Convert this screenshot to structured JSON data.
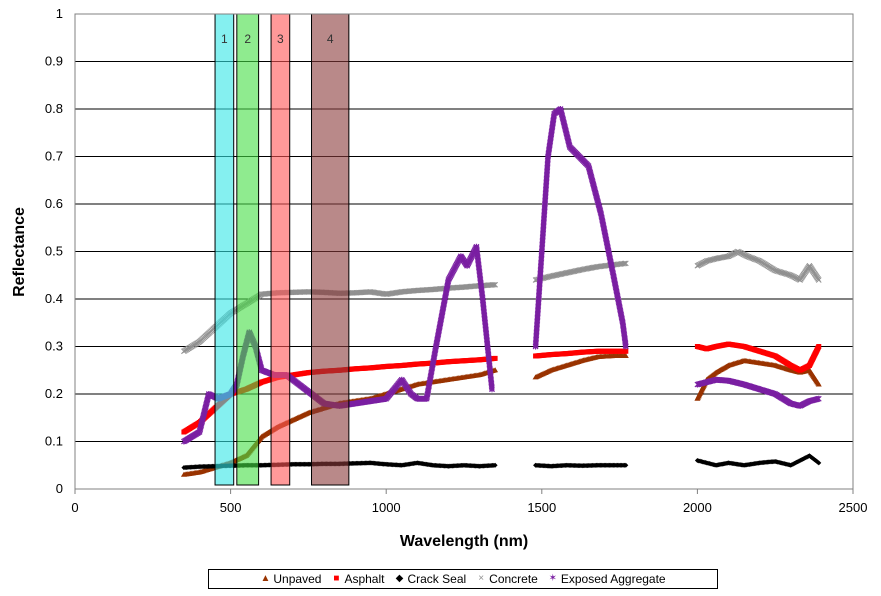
{
  "chart_data": {
    "type": "scatter",
    "title": "",
    "xlabel": "Wavelength (nm)",
    "ylabel": "Reflectance",
    "xlim": [
      0,
      2500
    ],
    "ylim": [
      0,
      1
    ],
    "x_ticks": [
      "0",
      "500",
      "1000",
      "1500",
      "2000",
      "2500"
    ],
    "y_ticks": [
      "0",
      "0.1",
      "0.2",
      "0.3",
      "0.4",
      "0.5",
      "0.6",
      "0.7",
      "0.8",
      "0.9",
      "1"
    ],
    "grid": "horizontal",
    "legend_position": "bottom",
    "bands": [
      {
        "label": "1",
        "x0": 450,
        "x1": 510,
        "color": "#33e6e6"
      },
      {
        "label": "2",
        "x0": 520,
        "x1": 590,
        "color": "#44dd44"
      },
      {
        "label": "3",
        "x0": 630,
        "x1": 690,
        "color": "#ff5555"
      },
      {
        "label": "4",
        "x0": 760,
        "x1": 880,
        "color": "#8b3a3a"
      }
    ],
    "series": [
      {
        "name": "Unpaved",
        "color": "#993300",
        "marker": "triangle",
        "segments": [
          [
            [
              350,
              0.03
            ],
            [
              400,
              0.035
            ],
            [
              450,
              0.045
            ],
            [
              500,
              0.055
            ],
            [
              550,
              0.07
            ],
            [
              600,
              0.11
            ],
            [
              650,
              0.13
            ],
            [
              700,
              0.145
            ],
            [
              750,
              0.16
            ],
            [
              800,
              0.17
            ],
            [
              850,
              0.18
            ],
            [
              900,
              0.185
            ],
            [
              950,
              0.19
            ],
            [
              1000,
              0.2
            ],
            [
              1050,
              0.21
            ],
            [
              1100,
              0.22
            ],
            [
              1150,
              0.225
            ],
            [
              1200,
              0.23
            ],
            [
              1250,
              0.235
            ],
            [
              1300,
              0.24
            ],
            [
              1350,
              0.25
            ]
          ],
          [
            [
              1480,
              0.235
            ],
            [
              1530,
              0.25
            ],
            [
              1580,
              0.26
            ],
            [
              1630,
              0.27
            ],
            [
              1680,
              0.278
            ],
            [
              1730,
              0.28
            ],
            [
              1770,
              0.28
            ]
          ],
          [
            [
              2000,
              0.19
            ],
            [
              2030,
              0.23
            ],
            [
              2060,
              0.245
            ],
            [
              2100,
              0.26
            ],
            [
              2150,
              0.27
            ],
            [
              2200,
              0.265
            ],
            [
              2250,
              0.26
            ],
            [
              2300,
              0.25
            ],
            [
              2330,
              0.245
            ],
            [
              2360,
              0.25
            ],
            [
              2390,
              0.22
            ]
          ]
        ]
      },
      {
        "name": "Asphalt",
        "color": "#ff0000",
        "marker": "square",
        "segments": [
          [
            [
              350,
              0.12
            ],
            [
              400,
              0.14
            ],
            [
              450,
              0.17
            ],
            [
              500,
              0.2
            ],
            [
              550,
              0.21
            ],
            [
              600,
              0.225
            ],
            [
              650,
              0.235
            ],
            [
              700,
              0.24
            ],
            [
              750,
              0.245
            ],
            [
              800,
              0.248
            ],
            [
              850,
              0.25
            ],
            [
              900,
              0.253
            ],
            [
              950,
              0.255
            ],
            [
              1000,
              0.258
            ],
            [
              1050,
              0.26
            ],
            [
              1100,
              0.263
            ],
            [
              1150,
              0.265
            ],
            [
              1200,
              0.268
            ],
            [
              1250,
              0.27
            ],
            [
              1300,
              0.272
            ],
            [
              1350,
              0.275
            ]
          ],
          [
            [
              1480,
              0.28
            ],
            [
              1530,
              0.283
            ],
            [
              1580,
              0.285
            ],
            [
              1630,
              0.288
            ],
            [
              1680,
              0.29
            ],
            [
              1730,
              0.29
            ],
            [
              1770,
              0.29
            ]
          ],
          [
            [
              2000,
              0.3
            ],
            [
              2030,
              0.295
            ],
            [
              2060,
              0.3
            ],
            [
              2100,
              0.305
            ],
            [
              2150,
              0.3
            ],
            [
              2200,
              0.29
            ],
            [
              2250,
              0.28
            ],
            [
              2300,
              0.26
            ],
            [
              2330,
              0.25
            ],
            [
              2360,
              0.26
            ],
            [
              2390,
              0.3
            ]
          ]
        ]
      },
      {
        "name": "Crack Seal",
        "color": "#000000",
        "marker": "diamond",
        "segments": [
          [
            [
              350,
              0.045
            ],
            [
              400,
              0.047
            ],
            [
              450,
              0.048
            ],
            [
              500,
              0.049
            ],
            [
              550,
              0.05
            ],
            [
              600,
              0.05
            ],
            [
              650,
              0.051
            ],
            [
              700,
              0.052
            ],
            [
              750,
              0.052
            ],
            [
              800,
              0.053
            ],
            [
              850,
              0.053
            ],
            [
              900,
              0.054
            ],
            [
              950,
              0.055
            ],
            [
              1000,
              0.052
            ],
            [
              1050,
              0.05
            ],
            [
              1100,
              0.055
            ],
            [
              1150,
              0.05
            ],
            [
              1200,
              0.048
            ],
            [
              1250,
              0.05
            ],
            [
              1300,
              0.048
            ],
            [
              1350,
              0.05
            ]
          ],
          [
            [
              1480,
              0.05
            ],
            [
              1530,
              0.048
            ],
            [
              1580,
              0.05
            ],
            [
              1630,
              0.049
            ],
            [
              1680,
              0.05
            ],
            [
              1730,
              0.05
            ],
            [
              1770,
              0.05
            ]
          ],
          [
            [
              2000,
              0.06
            ],
            [
              2030,
              0.055
            ],
            [
              2060,
              0.05
            ],
            [
              2100,
              0.055
            ],
            [
              2150,
              0.05
            ],
            [
              2200,
              0.055
            ],
            [
              2250,
              0.058
            ],
            [
              2300,
              0.05
            ],
            [
              2330,
              0.06
            ],
            [
              2360,
              0.07
            ],
            [
              2390,
              0.055
            ]
          ]
        ]
      },
      {
        "name": "Concrete",
        "color": "#909090",
        "marker": "x",
        "segments": [
          [
            [
              350,
              0.29
            ],
            [
              400,
              0.31
            ],
            [
              450,
              0.34
            ],
            [
              500,
              0.37
            ],
            [
              550,
              0.39
            ],
            [
              600,
              0.41
            ],
            [
              650,
              0.413
            ],
            [
              700,
              0.414
            ],
            [
              750,
              0.415
            ],
            [
              800,
              0.414
            ],
            [
              850,
              0.412
            ],
            [
              900,
              0.413
            ],
            [
              950,
              0.415
            ],
            [
              1000,
              0.41
            ],
            [
              1050,
              0.415
            ],
            [
              1100,
              0.418
            ],
            [
              1150,
              0.42
            ],
            [
              1200,
              0.423
            ],
            [
              1250,
              0.425
            ],
            [
              1300,
              0.428
            ],
            [
              1350,
              0.43
            ]
          ],
          [
            [
              1480,
              0.44
            ],
            [
              1530,
              0.448
            ],
            [
              1580,
              0.455
            ],
            [
              1630,
              0.462
            ],
            [
              1680,
              0.468
            ],
            [
              1730,
              0.472
            ],
            [
              1770,
              0.475
            ]
          ],
          [
            [
              2000,
              0.47
            ],
            [
              2030,
              0.48
            ],
            [
              2060,
              0.485
            ],
            [
              2100,
              0.49
            ],
            [
              2130,
              0.5
            ],
            [
              2160,
              0.49
            ],
            [
              2200,
              0.48
            ],
            [
              2250,
              0.46
            ],
            [
              2300,
              0.45
            ],
            [
              2330,
              0.44
            ],
            [
              2360,
              0.47
            ],
            [
              2390,
              0.44
            ]
          ]
        ]
      },
      {
        "name": "Exposed Aggregate",
        "color": "#7a1fa2",
        "marker": "star",
        "segments": [
          [
            [
              350,
              0.1
            ],
            [
              400,
              0.12
            ],
            [
              430,
              0.2
            ],
            [
              460,
              0.19
            ],
            [
              500,
              0.2
            ],
            [
              520,
              0.22
            ],
            [
              540,
              0.28
            ],
            [
              560,
              0.33
            ],
            [
              580,
              0.3
            ],
            [
              600,
              0.25
            ],
            [
              640,
              0.24
            ],
            [
              680,
              0.24
            ],
            [
              720,
              0.22
            ],
            [
              760,
              0.2
            ],
            [
              800,
              0.18
            ],
            [
              850,
              0.175
            ],
            [
              900,
              0.18
            ],
            [
              950,
              0.185
            ],
            [
              1000,
              0.19
            ],
            [
              1050,
              0.23
            ],
            [
              1080,
              0.2
            ],
            [
              1100,
              0.19
            ],
            [
              1130,
              0.19
            ],
            [
              1160,
              0.3
            ],
            [
              1200,
              0.44
            ],
            [
              1240,
              0.49
            ],
            [
              1260,
              0.47
            ],
            [
              1290,
              0.51
            ],
            [
              1310,
              0.4
            ],
            [
              1340,
              0.21
            ]
          ],
          [
            [
              1480,
              0.3
            ],
            [
              1500,
              0.5
            ],
            [
              1520,
              0.7
            ],
            [
              1540,
              0.79
            ],
            [
              1560,
              0.8
            ],
            [
              1590,
              0.72
            ],
            [
              1620,
              0.7
            ],
            [
              1650,
              0.68
            ],
            [
              1690,
              0.58
            ],
            [
              1730,
              0.45
            ],
            [
              1760,
              0.35
            ],
            [
              1770,
              0.3
            ]
          ],
          [
            [
              2000,
              0.22
            ],
            [
              2030,
              0.225
            ],
            [
              2060,
              0.23
            ],
            [
              2100,
              0.228
            ],
            [
              2150,
              0.22
            ],
            [
              2200,
              0.21
            ],
            [
              2250,
              0.2
            ],
            [
              2300,
              0.18
            ],
            [
              2330,
              0.175
            ],
            [
              2360,
              0.185
            ],
            [
              2390,
              0.19
            ]
          ]
        ]
      }
    ]
  }
}
